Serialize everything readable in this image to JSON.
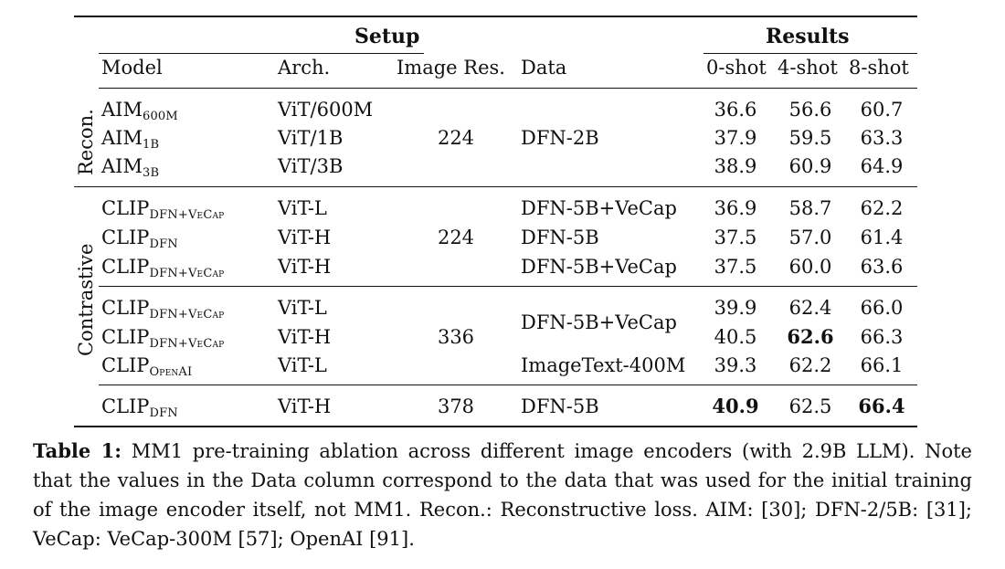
{
  "table": {
    "header": {
      "setup": "Setup",
      "results": "Results"
    },
    "columns": {
      "model": "Model",
      "arch": "Arch.",
      "res": "Image Res.",
      "data": "Data",
      "shot0": "0-shot",
      "shot4": "4-shot",
      "shot8": "8-shot"
    },
    "groups": {
      "recon": "Recon.",
      "contrastive": "Contrastive"
    },
    "recon": {
      "res": "224",
      "data": "DFN-2B",
      "rows": [
        {
          "m": "AIM",
          "sub": "600M",
          "arch": "ViT/600M",
          "r0": "36.6",
          "r4": "56.6",
          "r8": "60.7"
        },
        {
          "m": "AIM",
          "sub": "1B",
          "arch": "ViT/1B",
          "r0": "37.9",
          "r4": "59.5",
          "r8": "63.3"
        },
        {
          "m": "AIM",
          "sub": "3B",
          "arch": "ViT/3B",
          "r0": "38.9",
          "r4": "60.9",
          "r8": "64.9"
        }
      ]
    },
    "c224": {
      "res": "224",
      "rows": [
        {
          "m": "CLIP",
          "sub": "DFN+VeCap",
          "arch": "ViT-L",
          "data": "DFN-5B+VeCap",
          "r0": "36.9",
          "r4": "58.7",
          "r8": "62.2"
        },
        {
          "m": "CLIP",
          "sub": "DFN",
          "arch": "ViT-H",
          "data": "DFN-5B",
          "r0": "37.5",
          "r4": "57.0",
          "r8": "61.4"
        },
        {
          "m": "CLIP",
          "sub": "DFN+VeCap",
          "arch": "ViT-H",
          "data": "DFN-5B+VeCap",
          "r0": "37.5",
          "r4": "60.0",
          "r8": "63.6"
        }
      ]
    },
    "c336": {
      "res": "336",
      "data_merged": "DFN-5B+VeCap",
      "data_last": "ImageText-400M",
      "rows": [
        {
          "m": "CLIP",
          "sub": "DFN+VeCap",
          "arch": "ViT-L",
          "r0": "39.9",
          "r4": "62.4",
          "r8": "66.0"
        },
        {
          "m": "CLIP",
          "sub": "DFN+VeCap",
          "arch": "ViT-H",
          "r0": "40.5",
          "r4": "62.6",
          "r8": "66.3"
        },
        {
          "m": "CLIP",
          "sub": "OpenAI",
          "arch": "ViT-L",
          "r0": "39.3",
          "r4": "62.2",
          "r8": "66.1"
        }
      ]
    },
    "c378": {
      "m": "CLIP",
      "sub": "DFN",
      "arch": "ViT-H",
      "res": "378",
      "data": "DFN-5B",
      "r0": "40.9",
      "r4": "62.5",
      "r8": "66.4"
    }
  },
  "caption": {
    "label": "Table 1:",
    "text": "MM1 pre-training ablation across different image encoders (with 2.9B LLM). Note that the values in the Data column correspond to the data that was used for the initial training of the image encoder itself, not MM1. Recon.: Reconstructive loss. AIM: [30]; DFN-2/5B: [31]; VeCap: VeCap-300M [57]; OpenAI [91]."
  }
}
